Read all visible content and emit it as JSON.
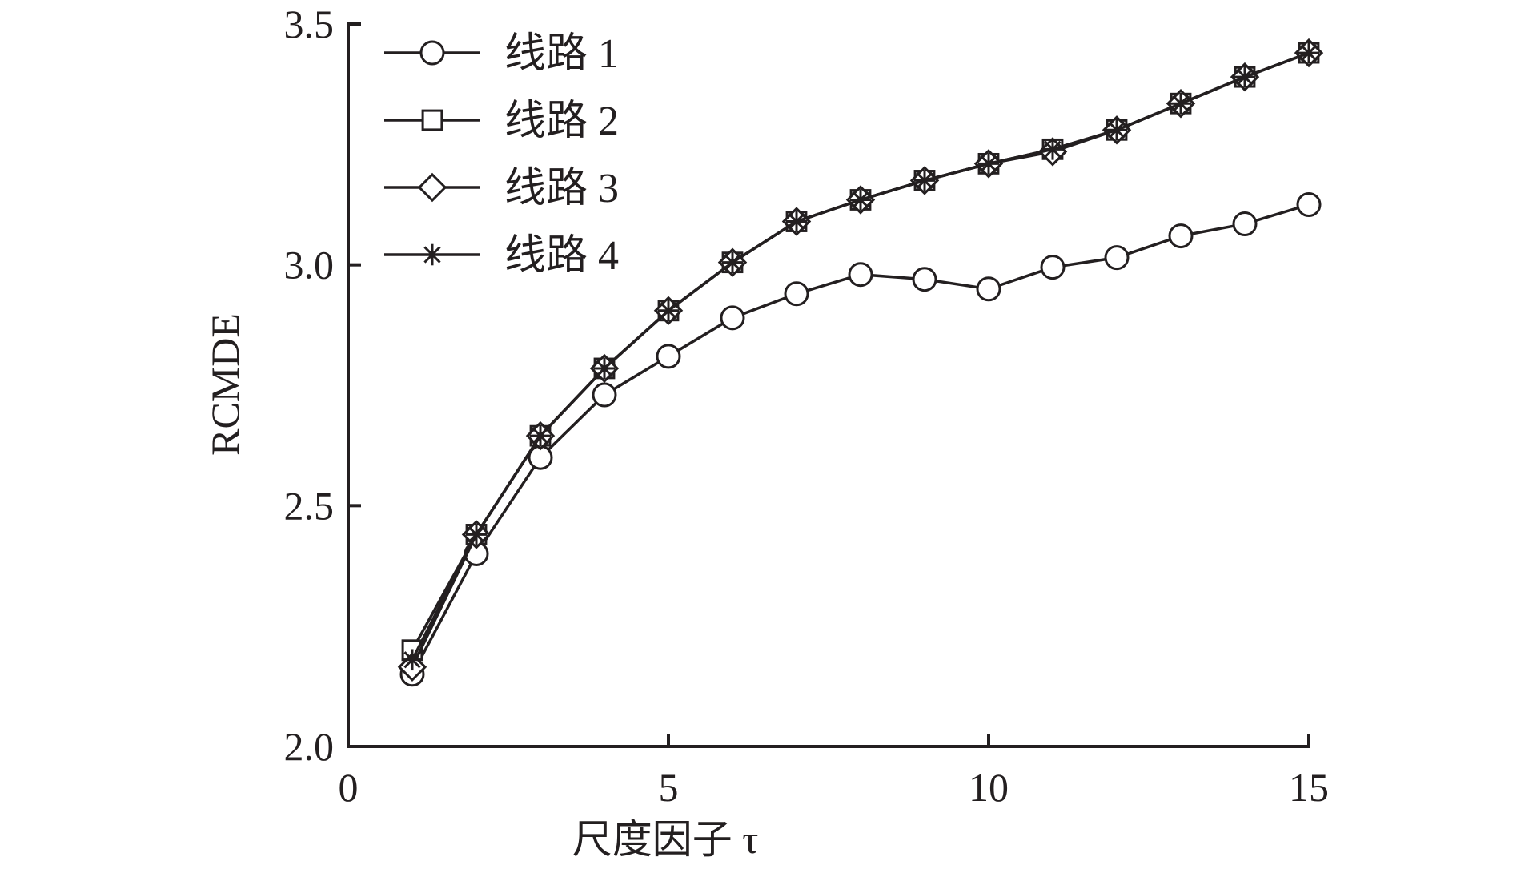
{
  "chart_data": {
    "type": "line",
    "title": "",
    "xlabel": "尺度因子 τ",
    "ylabel": "RCMDE",
    "xlim": [
      0,
      15
    ],
    "ylim": [
      2.0,
      3.5
    ],
    "xticks": [
      0,
      5,
      10,
      15
    ],
    "yticks": [
      2.0,
      2.5,
      3.0,
      3.5
    ],
    "xtick_labels": [
      "0",
      "5",
      "10",
      "15"
    ],
    "ytick_labels": [
      "2.0",
      "2.5",
      "3.0",
      "3.5"
    ],
    "grid": false,
    "legend_position": "top-left",
    "x": [
      1,
      2,
      3,
      4,
      5,
      6,
      7,
      8,
      9,
      10,
      11,
      12,
      13,
      14,
      15
    ],
    "series": [
      {
        "name": "线路 1",
        "marker": "circle",
        "color": "#231f20",
        "values": [
          2.15,
          2.4,
          2.6,
          2.73,
          2.81,
          2.89,
          2.94,
          2.98,
          2.97,
          2.95,
          2.995,
          3.015,
          3.06,
          3.085,
          3.125
        ]
      },
      {
        "name": "线路 2",
        "marker": "square",
        "color": "#231f20",
        "values": [
          2.2,
          2.44,
          2.645,
          2.785,
          2.905,
          3.005,
          3.09,
          3.135,
          3.175,
          3.21,
          3.24,
          3.28,
          3.335,
          3.39,
          3.44
        ]
      },
      {
        "name": "线路 3",
        "marker": "diamond",
        "color": "#231f20",
        "values": [
          2.165,
          2.44,
          2.645,
          2.785,
          2.905,
          3.005,
          3.09,
          3.135,
          3.175,
          3.21,
          3.235,
          3.28,
          3.335,
          3.39,
          3.44
        ]
      },
      {
        "name": "线路 4",
        "marker": "asterisk",
        "color": "#231f20",
        "values": [
          2.18,
          2.44,
          2.645,
          2.785,
          2.905,
          3.005,
          3.09,
          3.135,
          3.175,
          3.21,
          3.24,
          3.28,
          3.335,
          3.39,
          3.44
        ]
      }
    ]
  }
}
